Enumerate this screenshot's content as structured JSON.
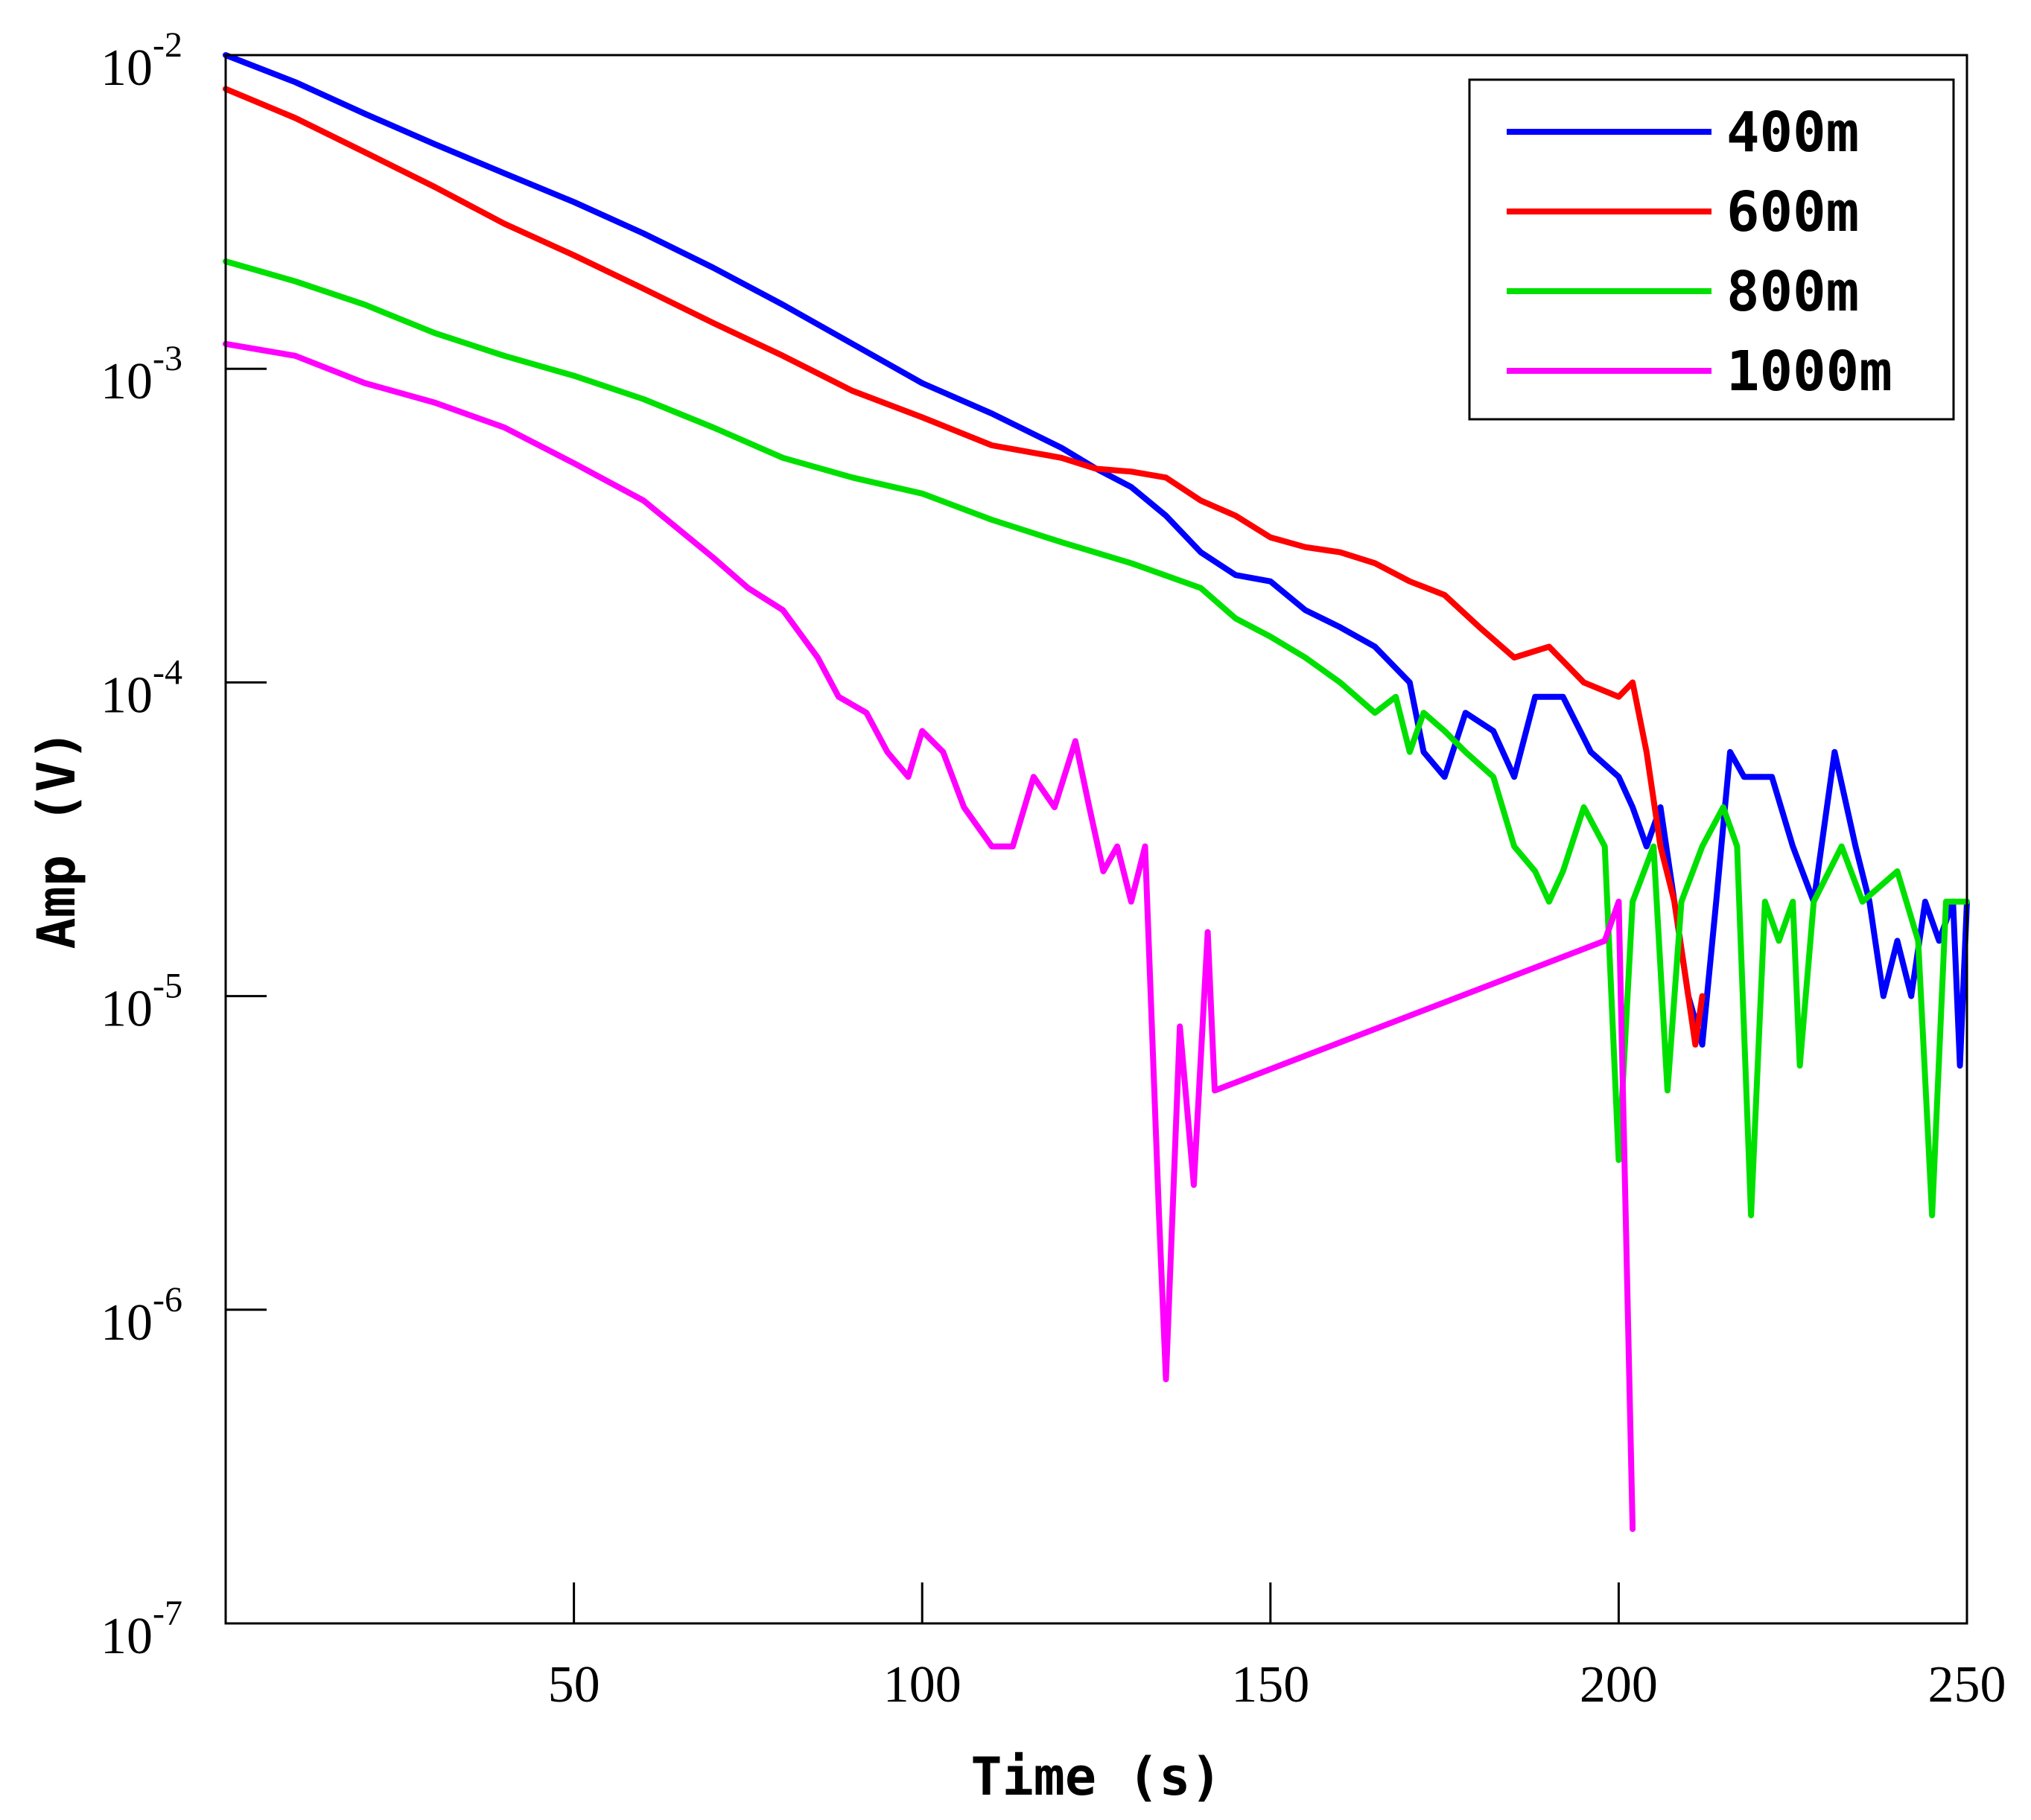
{
  "chart_data": {
    "type": "line",
    "title": "",
    "xlabel": "Time (s)",
    "ylabel": "Amp (V)",
    "xlim": [
      0,
      250
    ],
    "ylim": [
      1e-07,
      0.01
    ],
    "yscale": "log",
    "grid": false,
    "legend_position": "top-right",
    "x_ticks": [
      {
        "value": 50,
        "label": "50"
      },
      {
        "value": 100,
        "label": "100"
      },
      {
        "value": 150,
        "label": "150"
      },
      {
        "value": 200,
        "label": "200"
      },
      {
        "value": 250,
        "label": "250"
      }
    ],
    "y_ticks": [
      {
        "value": 0.01,
        "base": "10",
        "exp": "-2"
      },
      {
        "value": 0.001,
        "base": "10",
        "exp": "-3"
      },
      {
        "value": 0.0001,
        "base": "10",
        "exp": "-4"
      },
      {
        "value": 1e-05,
        "base": "10",
        "exp": "-5"
      },
      {
        "value": 1e-06,
        "base": "10",
        "exp": "-6"
      },
      {
        "value": 1e-07,
        "base": "10",
        "exp": "-7"
      }
    ],
    "series": [
      {
        "name": "400m",
        "color": "#0000ff",
        "points": [
          [
            0,
            0.01
          ],
          [
            10,
            0.0082
          ],
          [
            20,
            0.0065
          ],
          [
            30,
            0.0052
          ],
          [
            40,
            0.0042
          ],
          [
            50,
            0.0034
          ],
          [
            60,
            0.0027
          ],
          [
            70,
            0.0021
          ],
          [
            80,
            0.0016
          ],
          [
            90,
            0.0012
          ],
          [
            100,
            0.0009
          ],
          [
            110,
            0.00072
          ],
          [
            120,
            0.00056
          ],
          [
            125,
            0.00048
          ],
          [
            130,
            0.00042
          ],
          [
            135,
            0.00034
          ],
          [
            140,
            0.00026
          ],
          [
            145,
            0.00022
          ],
          [
            150,
            0.00021
          ],
          [
            155,
            0.00017
          ],
          [
            160,
            0.00015
          ],
          [
            165,
            0.00013
          ],
          [
            170,
            0.0001
          ],
          [
            172,
            6e-05
          ],
          [
            175,
            5e-05
          ],
          [
            178,
            8e-05
          ],
          [
            182,
            7e-05
          ],
          [
            185,
            5e-05
          ],
          [
            188,
            9e-05
          ],
          [
            192,
            9e-05
          ],
          [
            196,
            6e-05
          ],
          [
            200,
            5e-05
          ],
          [
            202,
            4e-05
          ],
          [
            204,
            3e-05
          ],
          [
            206,
            4e-05
          ],
          [
            208,
            2e-05
          ],
          [
            210,
            1e-05
          ],
          [
            212,
            7e-06
          ],
          [
            214,
            2e-05
          ],
          [
            216,
            6e-05
          ],
          [
            218,
            5e-05
          ],
          [
            222,
            5e-05
          ],
          [
            225,
            3e-05
          ],
          [
            228,
            2e-05
          ],
          [
            231,
            6e-05
          ],
          [
            234,
            3e-05
          ],
          [
            236,
            2e-05
          ],
          [
            238,
            1e-05
          ],
          [
            240,
            1.5e-05
          ],
          [
            242,
            1e-05
          ],
          [
            244,
            2e-05
          ],
          [
            246,
            1.5e-05
          ],
          [
            248,
            2e-05
          ],
          [
            249,
            6e-06
          ],
          [
            250,
            2e-05
          ]
        ]
      },
      {
        "name": "600m",
        "color": "#ff0000",
        "points": [
          [
            0,
            0.0078
          ],
          [
            10,
            0.0063
          ],
          [
            20,
            0.0049
          ],
          [
            30,
            0.0038
          ],
          [
            40,
            0.0029
          ],
          [
            50,
            0.0023
          ],
          [
            60,
            0.0018
          ],
          [
            70,
            0.0014
          ],
          [
            80,
            0.0011
          ],
          [
            90,
            0.00085
          ],
          [
            100,
            0.0007
          ],
          [
            110,
            0.00057
          ],
          [
            120,
            0.00052
          ],
          [
            125,
            0.00048
          ],
          [
            130,
            0.00047
          ],
          [
            135,
            0.00045
          ],
          [
            140,
            0.00038
          ],
          [
            145,
            0.00034
          ],
          [
            150,
            0.00029
          ],
          [
            155,
            0.00027
          ],
          [
            160,
            0.00026
          ],
          [
            165,
            0.00024
          ],
          [
            170,
            0.00021
          ],
          [
            175,
            0.00019
          ],
          [
            180,
            0.00015
          ],
          [
            185,
            0.00012
          ],
          [
            190,
            0.00013
          ],
          [
            195,
            0.0001
          ],
          [
            200,
            9e-05
          ],
          [
            202,
            0.0001
          ],
          [
            204,
            6e-05
          ],
          [
            206,
            3e-05
          ],
          [
            208,
            2e-05
          ],
          [
            210,
            1e-05
          ],
          [
            211,
            7e-06
          ],
          [
            212,
            1e-05
          ]
        ]
      },
      {
        "name": "800m",
        "color": "#00e000",
        "points": [
          [
            0,
            0.0022
          ],
          [
            10,
            0.0019
          ],
          [
            20,
            0.0016
          ],
          [
            30,
            0.0013
          ],
          [
            40,
            0.0011
          ],
          [
            50,
            0.00095
          ],
          [
            60,
            0.0008
          ],
          [
            70,
            0.00065
          ],
          [
            80,
            0.00052
          ],
          [
            90,
            0.00045
          ],
          [
            100,
            0.0004
          ],
          [
            110,
            0.00033
          ],
          [
            120,
            0.00028
          ],
          [
            130,
            0.00024
          ],
          [
            140,
            0.0002
          ],
          [
            145,
            0.00016
          ],
          [
            150,
            0.00014
          ],
          [
            155,
            0.00012
          ],
          [
            160,
            0.0001
          ],
          [
            165,
            8e-05
          ],
          [
            168,
            9e-05
          ],
          [
            170,
            6e-05
          ],
          [
            172,
            8e-05
          ],
          [
            175,
            7e-05
          ],
          [
            178,
            6e-05
          ],
          [
            182,
            5e-05
          ],
          [
            185,
            3e-05
          ],
          [
            188,
            2.5e-05
          ],
          [
            190,
            2e-05
          ],
          [
            192,
            2.5e-05
          ],
          [
            195,
            4e-05
          ],
          [
            198,
            3e-05
          ],
          [
            200,
            3e-06
          ],
          [
            202,
            2e-05
          ],
          [
            205,
            3e-05
          ],
          [
            207,
            5e-06
          ],
          [
            209,
            2e-05
          ],
          [
            212,
            3e-05
          ],
          [
            215,
            4e-05
          ],
          [
            217,
            3e-05
          ],
          [
            219,
            2e-06
          ],
          [
            221,
            2e-05
          ],
          [
            223,
            1.5e-05
          ],
          [
            225,
            2e-05
          ],
          [
            226,
            6e-06
          ],
          [
            228,
            2e-05
          ],
          [
            232,
            3e-05
          ],
          [
            235,
            2e-05
          ],
          [
            240,
            2.5e-05
          ],
          [
            243,
            1.5e-05
          ],
          [
            245,
            2e-06
          ],
          [
            247,
            2e-05
          ],
          [
            250,
            2e-05
          ]
        ]
      },
      {
        "name": "1000m",
        "color": "#ff00ff",
        "points": [
          [
            0,
            0.0012
          ],
          [
            10,
            0.0011
          ],
          [
            20,
            0.0009
          ],
          [
            30,
            0.00078
          ],
          [
            40,
            0.00065
          ],
          [
            50,
            0.0005
          ],
          [
            60,
            0.00038
          ],
          [
            70,
            0.00025
          ],
          [
            75,
            0.0002
          ],
          [
            80,
            0.00017
          ],
          [
            85,
            0.00012
          ],
          [
            88,
            9e-05
          ],
          [
            92,
            8e-05
          ],
          [
            95,
            6e-05
          ],
          [
            98,
            5e-05
          ],
          [
            100,
            7e-05
          ],
          [
            103,
            6e-05
          ],
          [
            106,
            4e-05
          ],
          [
            110,
            3e-05
          ],
          [
            113,
            3e-05
          ],
          [
            116,
            5e-05
          ],
          [
            119,
            4e-05
          ],
          [
            122,
            6.5e-05
          ],
          [
            124,
            4e-05
          ],
          [
            126,
            2.5e-05
          ],
          [
            128,
            3e-05
          ],
          [
            130,
            2e-05
          ],
          [
            132,
            3e-05
          ],
          [
            134,
            2e-06
          ],
          [
            135,
            6e-07
          ],
          [
            137,
            8e-06
          ],
          [
            139,
            2.5e-06
          ],
          [
            141,
            1.6e-05
          ],
          [
            142,
            5e-06
          ],
          [
            198,
            1.5e-05
          ],
          [
            200,
            2e-05
          ],
          [
            201,
            2e-06
          ],
          [
            202,
            2e-07
          ]
        ]
      }
    ]
  }
}
